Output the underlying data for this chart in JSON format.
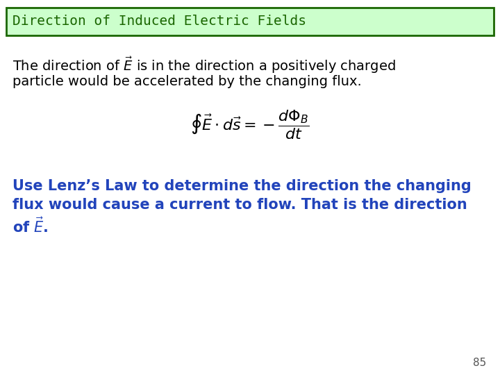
{
  "title": "Direction of Induced Electric Fields",
  "title_bg": "#ccffcc",
  "title_border": "#1a6600",
  "title_text_color": "#1a6600",
  "body_bg": "#ffffff",
  "para_line1": "The direction of $\\vec{E}$ is in the direction a positively charged",
  "para_line2": "particle would be accelerated by the changing flux.",
  "paragraph_color": "#000000",
  "equation": "$\\oint \\vec{E} \\cdot d\\vec{s} = -\\dfrac{d\\Phi_B}{dt}$",
  "equation_color": "#000000",
  "bold_text_line1": "Use Lenz’s Law to determine the direction the changing",
  "bold_text_line2": "flux would cause a current to flow. That is the direction",
  "bold_text_line3": "of $\\vec{E}$.",
  "bold_text_color": "#2244bb",
  "page_number": "85",
  "page_number_color": "#555555",
  "title_fontsize": 14,
  "para_fontsize": 14,
  "eq_fontsize": 16,
  "bold_fontsize": 15
}
